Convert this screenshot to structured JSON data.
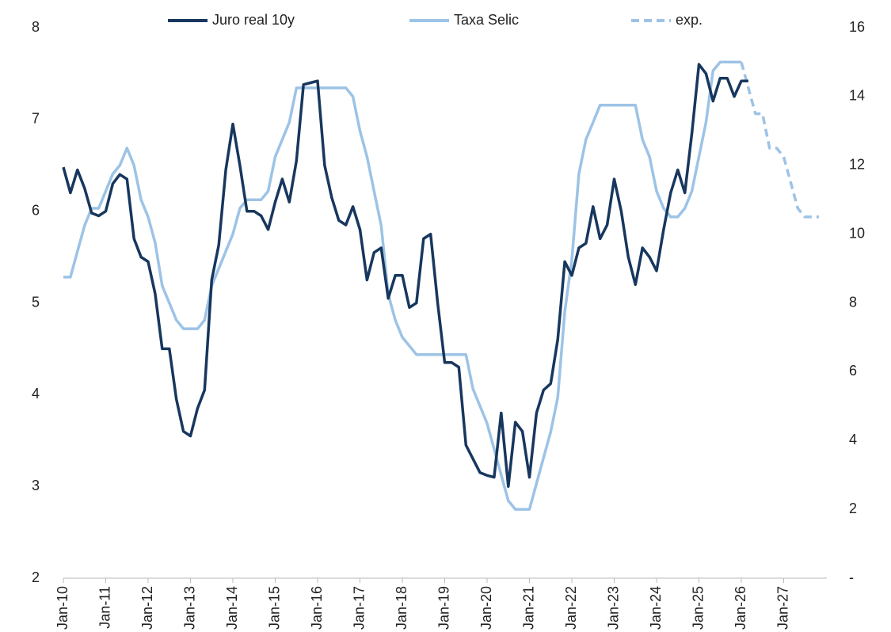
{
  "chart_data": {
    "type": "line",
    "categories": [
      "Jan-10",
      null,
      null,
      null,
      null,
      null,
      "Jan-11",
      null,
      null,
      null,
      null,
      null,
      "Jan-12",
      null,
      null,
      null,
      null,
      null,
      "Jan-13",
      null,
      null,
      null,
      null,
      null,
      "Jan-14",
      null,
      null,
      null,
      null,
      null,
      "Jan-15",
      null,
      null,
      null,
      null,
      null,
      "Jan-16",
      null,
      null,
      null,
      null,
      null,
      "Jan-17",
      null,
      null,
      null,
      null,
      null,
      "Jan-18",
      null,
      null,
      null,
      null,
      null,
      "Jan-19",
      null,
      null,
      null,
      null,
      null,
      "Jan-20",
      null,
      null,
      null,
      null,
      null,
      "Jan-21",
      null,
      null,
      null,
      null,
      null,
      "Jan-22",
      null,
      null,
      null,
      null,
      null,
      "Jan-23",
      null,
      null,
      null,
      null,
      null,
      "Jan-24",
      null,
      null,
      null,
      null,
      null,
      "Jan-25",
      null,
      null,
      null,
      null,
      null,
      "Jan-26",
      null,
      null,
      null,
      null,
      null,
      "Jan-27",
      null,
      null,
      null,
      null,
      null
    ],
    "ylim": [
      2,
      8
    ],
    "yticks": [
      2,
      3,
      4,
      5,
      6,
      7,
      8
    ],
    "y2lim": [
      0,
      16
    ],
    "y2ticks": [
      {
        "value": 0,
        "label": "-"
      },
      2,
      4,
      6,
      8,
      10,
      12,
      14,
      16
    ],
    "legend": "top",
    "series": [
      {
        "name": "Juro real 10y",
        "color": "#17375e",
        "dashed": false,
        "values": [
          6.48,
          6.2,
          6.45,
          6.25,
          5.98,
          5.95,
          6.0,
          6.3,
          6.4,
          6.35,
          5.7,
          5.5,
          5.45,
          5.1,
          4.5,
          4.5,
          3.95,
          3.6,
          3.55,
          3.85,
          4.05,
          5.25,
          5.63,
          6.45,
          6.95,
          6.5,
          6.0,
          6.0,
          5.95,
          5.8,
          6.1,
          6.35,
          6.1,
          6.55,
          7.38,
          7.4,
          7.42,
          6.5,
          6.15,
          5.9,
          5.85,
          6.05,
          5.8,
          5.25,
          5.55,
          5.6,
          5.05,
          5.3,
          5.3,
          4.95,
          5.0,
          5.7,
          5.75,
          5.0,
          4.35,
          4.35,
          4.3,
          3.45,
          3.3,
          3.15,
          3.12,
          3.1,
          3.8,
          3.0,
          3.7,
          3.6,
          3.1,
          3.8,
          4.05,
          4.12,
          4.6,
          5.45,
          5.3,
          5.6,
          5.65,
          6.05,
          5.7,
          5.85,
          6.35,
          6.0,
          5.5,
          5.2,
          5.6,
          5.5,
          5.35,
          5.8,
          6.2,
          6.45,
          6.2,
          6.85,
          7.6,
          7.5,
          7.2,
          7.45,
          7.45,
          7.25,
          7.42,
          7.42,
          null,
          null,
          null,
          null,
          null,
          null,
          null,
          null,
          null,
          null
        ]
      },
      {
        "name": "Taxa Selic",
        "color": "#9dc3e6",
        "axis": "y2",
        "dashed": false,
        "values": [
          8.75,
          8.75,
          9.5,
          10.25,
          10.75,
          10.75,
          11.25,
          11.75,
          12.0,
          12.5,
          12.0,
          11.0,
          10.5,
          9.75,
          8.5,
          8.0,
          7.5,
          7.25,
          7.25,
          7.25,
          7.5,
          8.5,
          9.0,
          9.5,
          10.0,
          10.75,
          11.0,
          11.0,
          11.0,
          11.25,
          12.25,
          12.75,
          13.25,
          14.25,
          14.25,
          14.25,
          14.25,
          14.25,
          14.25,
          14.25,
          14.25,
          14.0,
          13.0,
          12.25,
          11.25,
          10.25,
          8.25,
          7.5,
          7.0,
          6.75,
          6.5,
          6.5,
          6.5,
          6.5,
          6.5,
          6.5,
          6.5,
          6.5,
          5.5,
          5.0,
          4.5,
          3.75,
          3.0,
          2.25,
          2.0,
          2.0,
          2.0,
          2.75,
          3.5,
          4.25,
          5.25,
          7.75,
          9.25,
          11.75,
          12.75,
          13.25,
          13.75,
          13.75,
          13.75,
          13.75,
          13.75,
          13.75,
          12.75,
          12.25,
          11.25,
          10.75,
          10.5,
          10.5,
          10.75,
          11.25,
          12.25,
          13.25,
          14.75,
          15.0,
          15.0,
          15.0,
          15.0,
          null,
          null,
          null,
          null,
          null,
          null,
          null,
          null,
          null,
          null,
          null
        ]
      },
      {
        "name": "exp.",
        "color": "#9dc3e6",
        "axis": "y2",
        "dashed": true,
        "values": [
          null,
          null,
          null,
          null,
          null,
          null,
          null,
          null,
          null,
          null,
          null,
          null,
          null,
          null,
          null,
          null,
          null,
          null,
          null,
          null,
          null,
          null,
          null,
          null,
          null,
          null,
          null,
          null,
          null,
          null,
          null,
          null,
          null,
          null,
          null,
          null,
          null,
          null,
          null,
          null,
          null,
          null,
          null,
          null,
          null,
          null,
          null,
          null,
          null,
          null,
          null,
          null,
          null,
          null,
          null,
          null,
          null,
          null,
          null,
          null,
          null,
          null,
          null,
          null,
          null,
          null,
          null,
          null,
          null,
          null,
          null,
          null,
          null,
          null,
          null,
          null,
          null,
          null,
          null,
          null,
          null,
          null,
          null,
          null,
          null,
          null,
          null,
          null,
          null,
          null,
          null,
          null,
          null,
          null,
          null,
          null,
          15.0,
          14.25,
          13.5,
          13.5,
          12.5,
          12.5,
          12.25,
          11.5,
          10.75,
          10.5,
          10.5,
          10.5
        ]
      }
    ]
  }
}
